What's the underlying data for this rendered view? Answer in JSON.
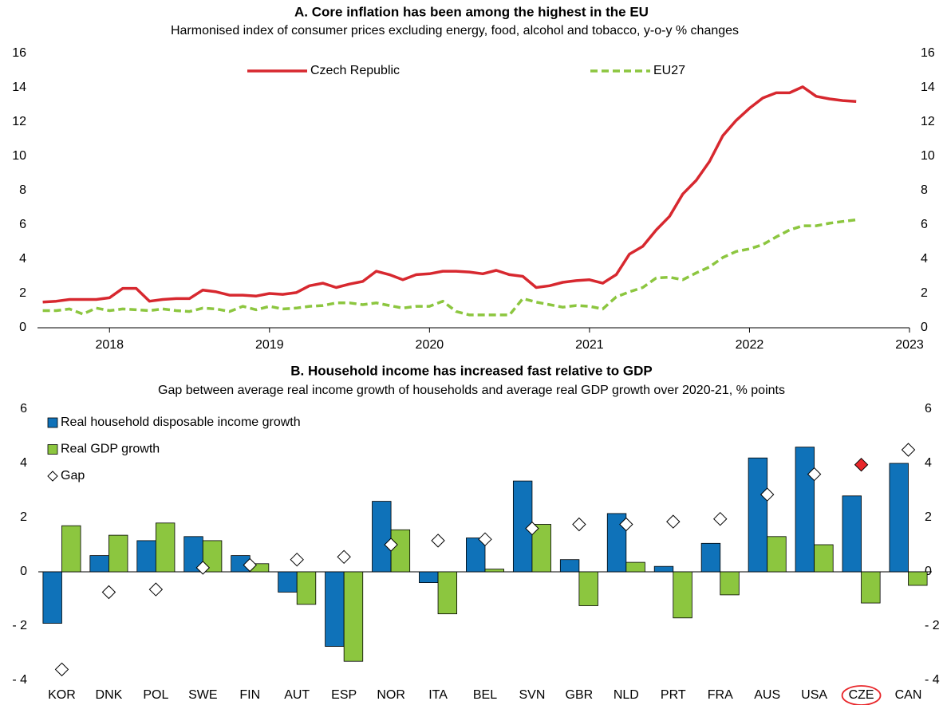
{
  "chart_data": [
    {
      "type": "line",
      "title": "A. Core inflation has been among the highest in the EU",
      "subtitle": "Harmonised index of consumer prices excluding energy, food, alcohol and tobacco, y-o-y % changes",
      "x": [
        2017.583,
        2017.667,
        2017.75,
        2017.833,
        2017.917,
        2018,
        2018.083,
        2018.167,
        2018.25,
        2018.333,
        2018.417,
        2018.5,
        2018.583,
        2018.667,
        2018.75,
        2018.833,
        2018.917,
        2019,
        2019.083,
        2019.167,
        2019.25,
        2019.333,
        2019.417,
        2019.5,
        2019.583,
        2019.667,
        2019.75,
        2019.833,
        2019.917,
        2020,
        2020.083,
        2020.167,
        2020.25,
        2020.333,
        2020.417,
        2020.5,
        2020.583,
        2020.667,
        2020.75,
        2020.833,
        2020.917,
        2021,
        2021.083,
        2021.167,
        2021.25,
        2021.333,
        2021.417,
        2021.5,
        2021.583,
        2021.667,
        2021.75,
        2021.833,
        2021.917,
        2022,
        2022.083,
        2022.167,
        2022.25,
        2022.333,
        2022.417,
        2022.5,
        2022.583,
        2022.667
      ],
      "series": [
        {
          "name": "Czech Republic",
          "color": "#d7282f",
          "dash": false,
          "values": [
            1.5,
            1.55,
            1.65,
            1.65,
            1.65,
            1.75,
            2.3,
            2.3,
            1.55,
            1.65,
            1.7,
            1.7,
            2.2,
            2.1,
            1.9,
            1.9,
            1.85,
            2.0,
            1.95,
            2.05,
            2.45,
            2.6,
            2.35,
            2.55,
            2.7,
            3.3,
            3.1,
            2.8,
            3.1,
            3.15,
            3.3,
            3.3,
            3.25,
            3.15,
            3.35,
            3.1,
            3.0,
            2.35,
            2.45,
            2.65,
            2.75,
            2.8,
            2.6,
            3.1,
            4.3,
            4.75,
            5.7,
            6.5,
            7.8,
            8.6,
            9.7,
            11.2,
            12.1,
            12.8,
            13.4,
            13.7,
            13.7,
            14.05,
            13.5,
            13.35,
            13.25,
            13.2
          ]
        },
        {
          "name": "EU27",
          "color": "#8cc63f",
          "dash": true,
          "values": [
            1.0,
            1.0,
            1.1,
            0.8,
            1.15,
            1.0,
            1.1,
            1.05,
            1.0,
            1.1,
            1.0,
            0.95,
            1.15,
            1.1,
            0.95,
            1.25,
            1.05,
            1.25,
            1.1,
            1.15,
            1.25,
            1.3,
            1.45,
            1.45,
            1.35,
            1.45,
            1.3,
            1.15,
            1.25,
            1.25,
            1.55,
            0.95,
            0.75,
            0.75,
            0.75,
            0.75,
            1.7,
            1.5,
            1.35,
            1.2,
            1.3,
            1.25,
            1.1,
            1.8,
            2.1,
            2.35,
            2.9,
            2.95,
            2.8,
            3.2,
            3.55,
            4.1,
            4.45,
            4.6,
            4.85,
            5.3,
            5.7,
            5.95,
            5.95,
            6.1,
            6.2,
            6.3
          ]
        }
      ],
      "xlim": [
        2017.55,
        2023
      ],
      "xticks": [
        2018,
        2019,
        2020,
        2021,
        2022,
        2023
      ],
      "ylim": [
        0,
        16
      ],
      "yticks": [
        0,
        2,
        4,
        6,
        8,
        10,
        12,
        14,
        16
      ],
      "legend": "top"
    },
    {
      "type": "bar",
      "title": "B.  Household income has increased fast relative to GDP",
      "subtitle": "Gap between average real income growth of households and average real GDP growth over 2020-21, % points",
      "categories": [
        "KOR",
        "DNK",
        "POL",
        "SWE",
        "FIN",
        "AUT",
        "ESP",
        "NOR",
        "ITA",
        "BEL",
        "SVN",
        "GBR",
        "NLD",
        "PRT",
        "FRA",
        "AUS",
        "USA",
        "CZE",
        "CAN"
      ],
      "series": [
        {
          "name": "Real household disposable income growth",
          "color": "#0f72b9",
          "values": [
            -1.9,
            0.6,
            1.15,
            1.3,
            0.6,
            -0.75,
            -2.75,
            2.6,
            -0.4,
            1.25,
            3.35,
            0.45,
            2.15,
            0.2,
            1.05,
            4.2,
            4.6,
            2.8,
            4.0
          ]
        },
        {
          "name": "Real GDP growth",
          "color": "#8cc63f",
          "values": [
            1.7,
            1.35,
            1.8,
            1.15,
            0.3,
            -1.2,
            -3.3,
            1.55,
            -1.55,
            0.1,
            1.75,
            -1.25,
            0.35,
            -1.7,
            -0.85,
            1.3,
            1.0,
            -1.15,
            -0.5
          ]
        },
        {
          "name": "Gap",
          "color": "#ffffff",
          "marker": "diamond",
          "values": [
            -3.6,
            -0.75,
            -0.65,
            0.15,
            0.25,
            0.45,
            0.55,
            1.0,
            1.15,
            1.2,
            1.6,
            1.75,
            1.75,
            1.85,
            1.95,
            2.85,
            3.6,
            3.95,
            4.5
          ]
        }
      ],
      "highlight": "CZE",
      "highlight_color": "#e8262a",
      "ylim": [
        -4,
        6
      ],
      "yticks": [
        {
          "value": -4,
          "label": "- 4"
        },
        {
          "value": -2,
          "label": "- 2"
        },
        0,
        2,
        4,
        6
      ]
    }
  ]
}
